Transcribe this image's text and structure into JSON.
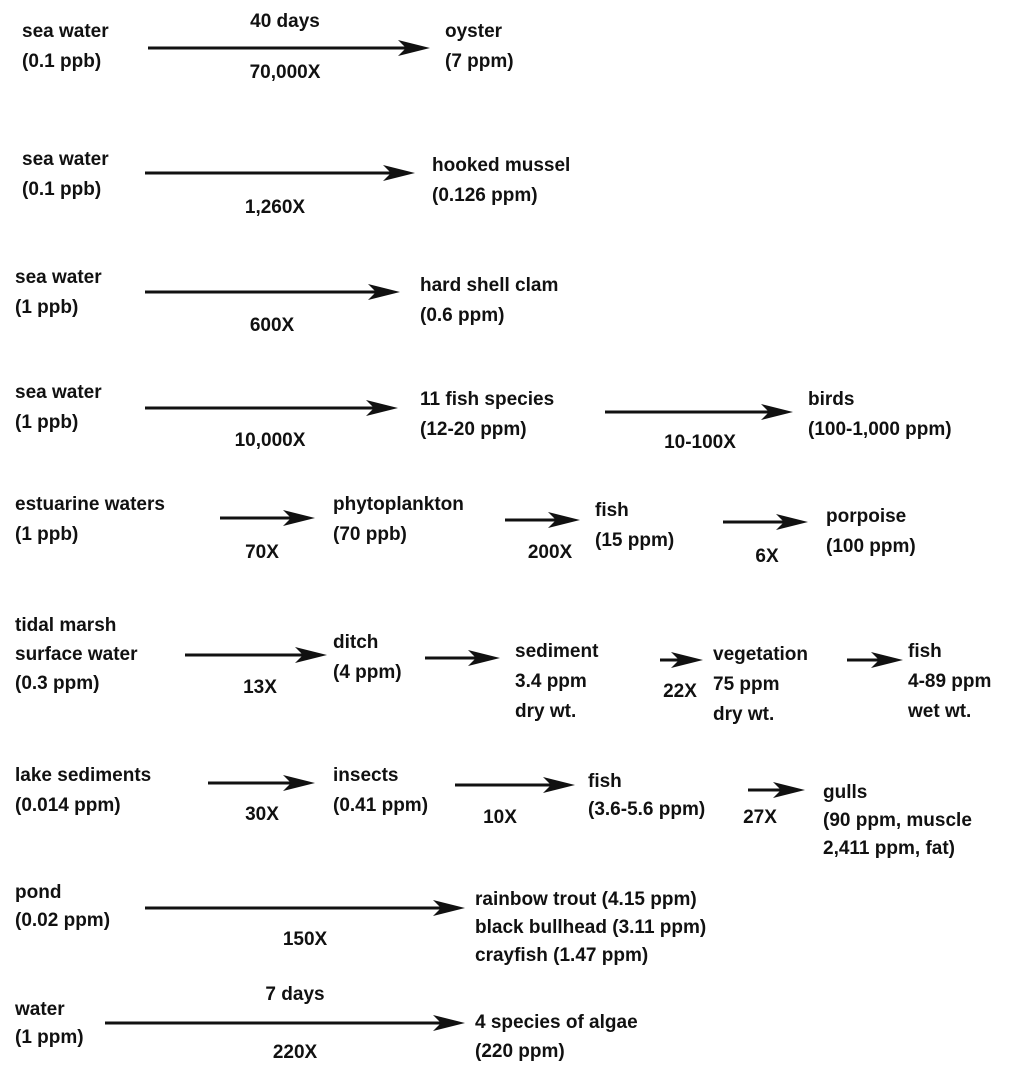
{
  "chains": [
    {
      "nodes": [
        {
          "lines": [
            "sea water",
            "(0.1 ppb)"
          ]
        },
        {
          "lines": [
            "oyster",
            "(7 ppm)"
          ]
        }
      ],
      "arrows": [
        {
          "above": "40 days",
          "below": "70,000X"
        }
      ]
    },
    {
      "nodes": [
        {
          "lines": [
            "sea water",
            "(0.1 ppb)"
          ]
        },
        {
          "lines": [
            "hooked mussel",
            "(0.126 ppm)"
          ]
        }
      ],
      "arrows": [
        {
          "below": "1,260X"
        }
      ]
    },
    {
      "nodes": [
        {
          "lines": [
            "sea water",
            "(1 ppb)"
          ]
        },
        {
          "lines": [
            "hard shell clam",
            "(0.6 ppm)"
          ]
        }
      ],
      "arrows": [
        {
          "below": "600X"
        }
      ]
    },
    {
      "nodes": [
        {
          "lines": [
            "sea water",
            "(1 ppb)"
          ]
        },
        {
          "lines": [
            "11 fish species",
            "(12-20 ppm)"
          ]
        },
        {
          "lines": [
            "birds",
            "(100-1,000 ppm)"
          ]
        }
      ],
      "arrows": [
        {
          "below": "10,000X"
        },
        {
          "below": "10-100X"
        }
      ]
    },
    {
      "nodes": [
        {
          "lines": [
            "estuarine waters",
            "(1 ppb)"
          ]
        },
        {
          "lines": [
            "phytoplankton",
            "(70 ppb)"
          ]
        },
        {
          "lines": [
            "fish",
            "(15 ppm)"
          ]
        },
        {
          "lines": [
            "porpoise",
            "(100 ppm)"
          ]
        }
      ],
      "arrows": [
        {
          "below": "70X"
        },
        {
          "below": "200X"
        },
        {
          "below": "6X"
        }
      ]
    },
    {
      "nodes": [
        {
          "lines": [
            "tidal marsh",
            "surface water",
            "(0.3 ppm)"
          ]
        },
        {
          "lines": [
            "ditch",
            "(4 ppm)"
          ]
        },
        {
          "lines": [
            "sediment",
            "3.4 ppm",
            "dry wt."
          ]
        },
        {
          "lines": [
            "vegetation",
            "75 ppm",
            "dry wt."
          ]
        },
        {
          "lines": [
            "fish",
            "4-89 ppm",
            "wet wt."
          ]
        }
      ],
      "arrows": [
        {
          "below": "13X"
        },
        {},
        {
          "below": "22X"
        },
        {}
      ]
    },
    {
      "nodes": [
        {
          "lines": [
            "lake sediments",
            "(0.014 ppm)"
          ]
        },
        {
          "lines": [
            "insects",
            "(0.41 ppm)"
          ]
        },
        {
          "lines": [
            "fish",
            "(3.6-5.6 ppm)"
          ]
        },
        {
          "lines": [
            "gulls",
            "(90 ppm, muscle",
            "2,411 ppm, fat)"
          ]
        }
      ],
      "arrows": [
        {
          "below": "30X"
        },
        {
          "below": "10X"
        },
        {
          "below": "27X"
        }
      ]
    },
    {
      "nodes": [
        {
          "lines": [
            "pond",
            "(0.02 ppm)"
          ]
        },
        {
          "lines": [
            "rainbow trout (4.15 ppm)",
            "black  bullhead (3.11 ppm)",
            "crayfish (1.47 ppm)"
          ]
        }
      ],
      "arrows": [
        {
          "below": "150X"
        }
      ]
    },
    {
      "nodes": [
        {
          "lines": [
            "water",
            "(1 ppm)"
          ]
        },
        {
          "lines": [
            "4 species of algae",
            "(220 ppm)"
          ]
        }
      ],
      "arrows": [
        {
          "above": "7 days",
          "below": "220X"
        }
      ]
    }
  ]
}
